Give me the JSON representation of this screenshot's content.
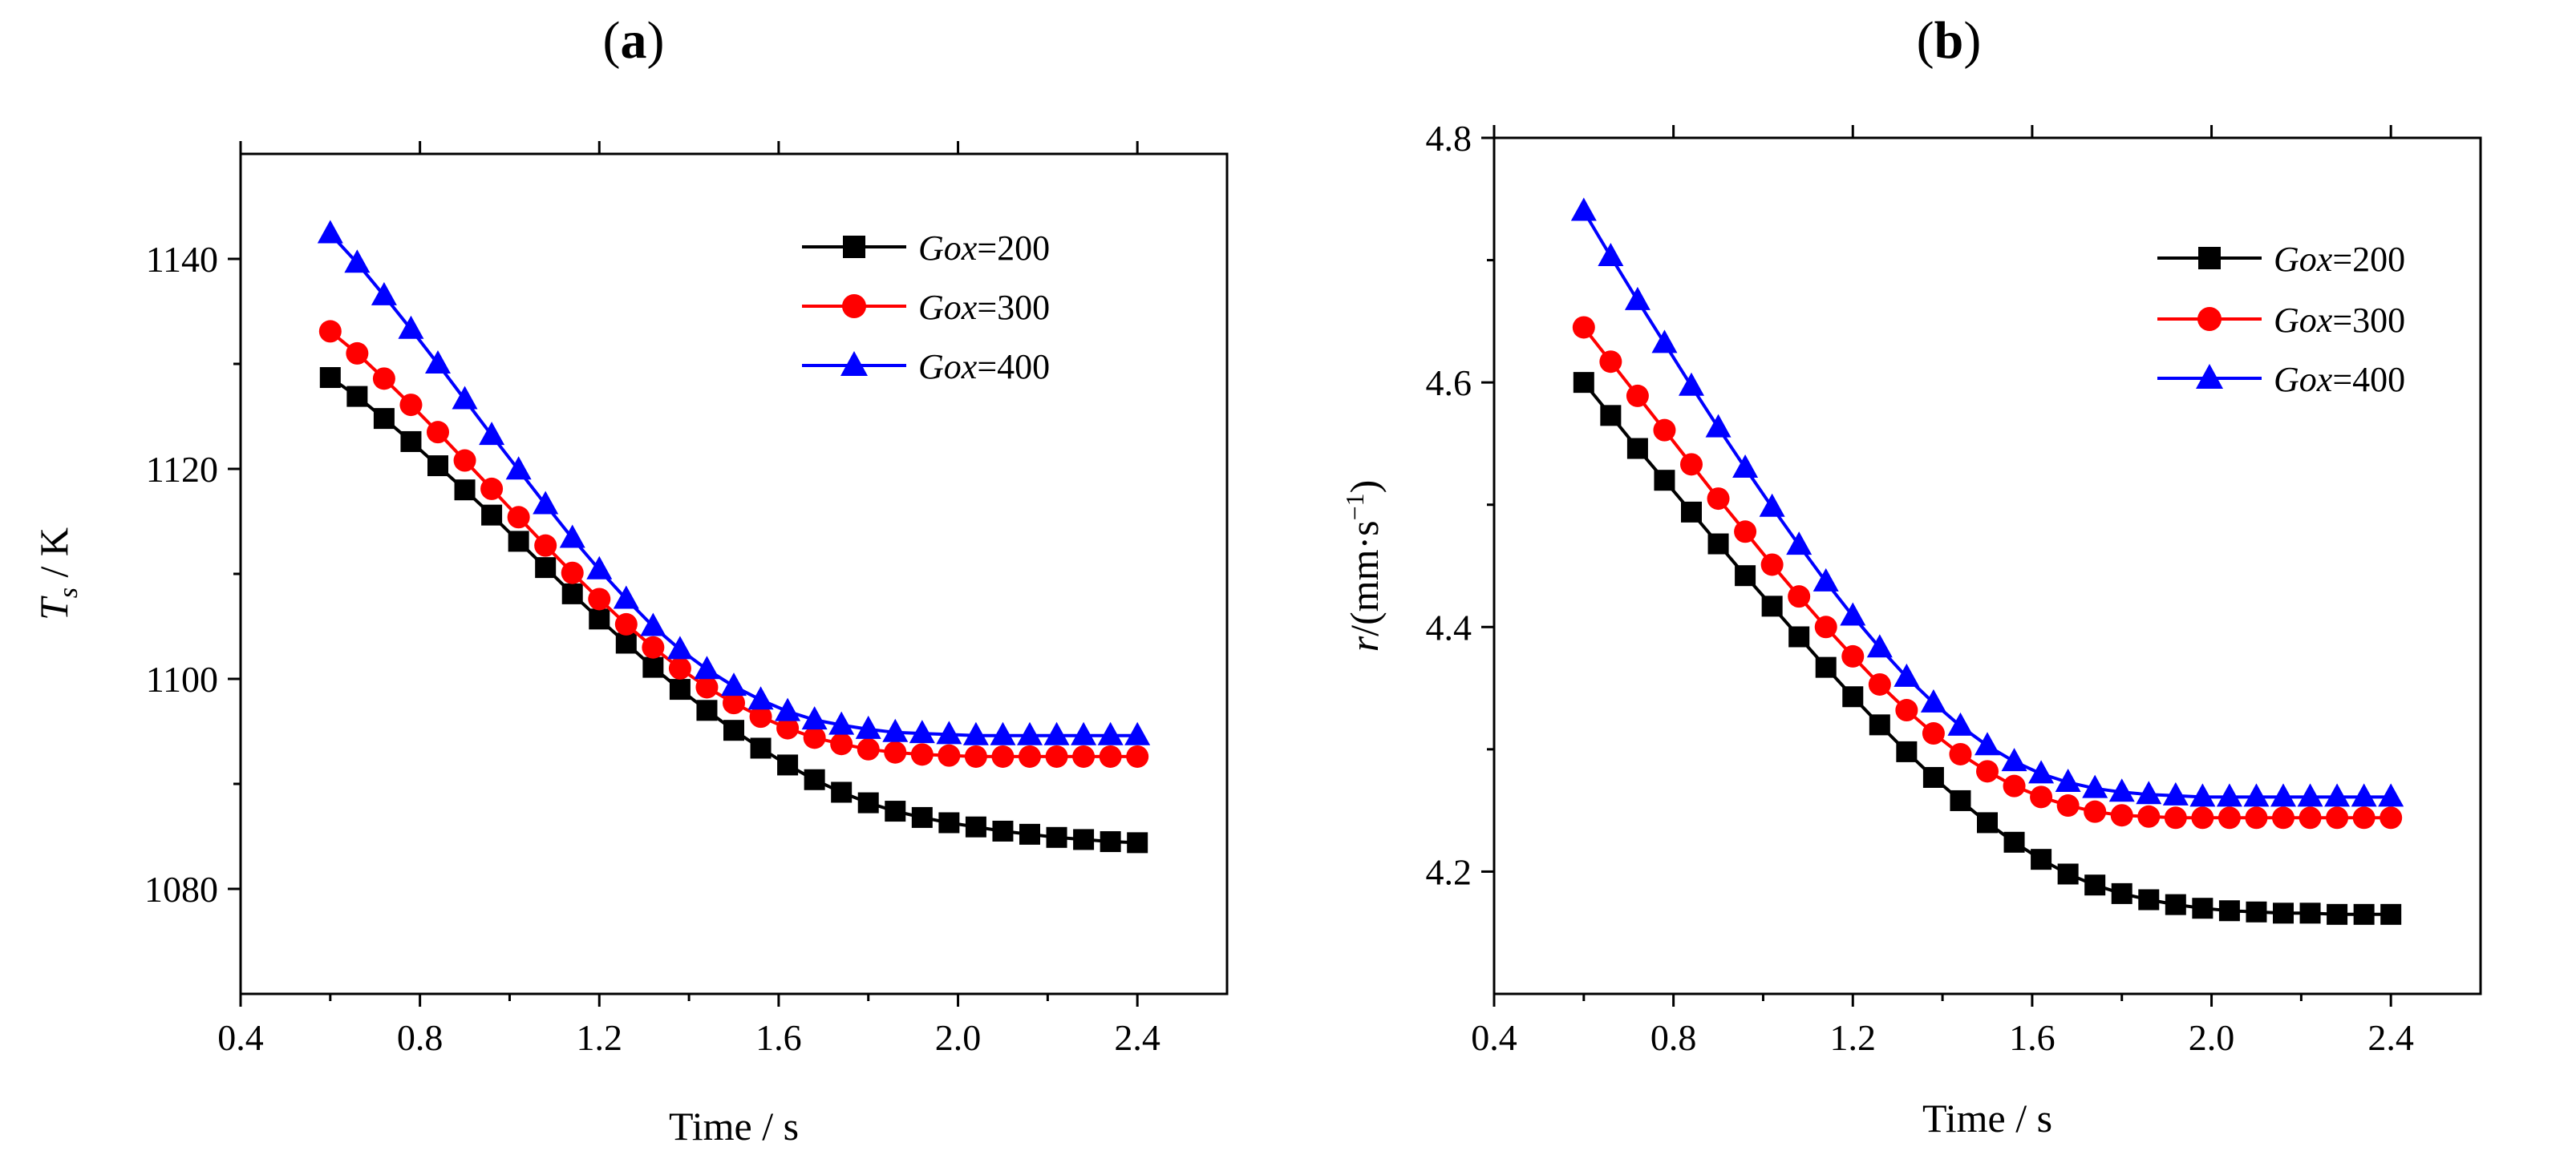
{
  "figure": {
    "panels": [
      {
        "label_open": "(",
        "label_letter": "a",
        "label_close": ")"
      },
      {
        "label_open": "(",
        "label_letter": "b",
        "label_close": ")"
      }
    ]
  },
  "chart_data": [
    {
      "type": "line",
      "panel": "(a)",
      "title": "",
      "xlabel": "Time / s",
      "ylabel_main": "T",
      "ylabel_sub": "s",
      "ylabel_rest": " / K",
      "xlim": [
        0.4,
        2.6
      ],
      "ylim": [
        1070,
        1150
      ],
      "xticks": [
        0.4,
        0.8,
        1.2,
        1.6,
        2.0,
        2.4
      ],
      "xtick_labels": [
        "0.4",
        "0.8",
        "1.2",
        "1.6",
        "2.0",
        "2.4"
      ],
      "yticks": [
        1080,
        1100,
        1120,
        1140
      ],
      "ytick_labels": [
        "1080",
        "1100",
        "1120",
        "1140"
      ],
      "legend_position": "top-right",
      "x": [
        0.6,
        0.66,
        0.72,
        0.78,
        0.84,
        0.9,
        0.96,
        1.02,
        1.08,
        1.14,
        1.2,
        1.26,
        1.32,
        1.38,
        1.44,
        1.5,
        1.56,
        1.62,
        1.68,
        1.74,
        1.8,
        1.86,
        1.92,
        1.98,
        2.04,
        2.1,
        2.16,
        2.22,
        2.28,
        2.34,
        2.4
      ],
      "series": [
        {
          "name_italic": "Gox",
          "name_rest": "=200",
          "color": "#000000",
          "marker": "square",
          "values": [
            1128.7,
            1126.9,
            1124.8,
            1122.6,
            1120.3,
            1118.0,
            1115.6,
            1113.1,
            1110.6,
            1108.1,
            1105.7,
            1103.4,
            1101.1,
            1099.0,
            1097.0,
            1095.1,
            1093.4,
            1091.8,
            1090.4,
            1089.2,
            1088.2,
            1087.4,
            1086.8,
            1086.3,
            1085.9,
            1085.5,
            1085.2,
            1084.9,
            1084.7,
            1084.5,
            1084.4
          ]
        },
        {
          "name_italic": "Gox",
          "name_rest": "=300",
          "color": "#ff0000",
          "marker": "circle",
          "values": [
            1133.1,
            1131.0,
            1128.6,
            1126.1,
            1123.5,
            1120.8,
            1118.1,
            1115.4,
            1112.7,
            1110.1,
            1107.6,
            1105.2,
            1103.0,
            1101.0,
            1099.2,
            1097.7,
            1096.4,
            1095.3,
            1094.4,
            1093.8,
            1093.3,
            1093.0,
            1092.8,
            1092.7,
            1092.6,
            1092.6,
            1092.6,
            1092.6,
            1092.6,
            1092.6,
            1092.6
          ]
        },
        {
          "name_italic": "Gox",
          "name_rest": "=400",
          "color": "#0000ff",
          "marker": "triangle",
          "values": [
            1142.4,
            1139.6,
            1136.5,
            1133.3,
            1130.0,
            1126.6,
            1123.2,
            1119.9,
            1116.6,
            1113.4,
            1110.4,
            1107.6,
            1105.0,
            1102.8,
            1100.9,
            1099.3,
            1098.0,
            1096.9,
            1096.1,
            1095.6,
            1095.2,
            1094.9,
            1094.8,
            1094.7,
            1094.6,
            1094.6,
            1094.6,
            1094.6,
            1094.6,
            1094.6,
            1094.6
          ]
        }
      ]
    },
    {
      "type": "line",
      "panel": "(b)",
      "title": "",
      "xlabel": "Time / s",
      "ylabel_main": "r",
      "ylabel_rest": "/(mm·s",
      "ylabel_sup": "−1",
      "ylabel_close": ")",
      "xlim": [
        0.4,
        2.6
      ],
      "ylim": [
        4.1,
        4.8
      ],
      "xticks": [
        0.4,
        0.8,
        1.2,
        1.6,
        2.0,
        2.4
      ],
      "xtick_labels": [
        "0.4",
        "0.8",
        "1.2",
        "1.6",
        "2.0",
        "2.4"
      ],
      "yticks": [
        4.2,
        4.4,
        4.6,
        4.8
      ],
      "ytick_labels": [
        "4.2",
        "4.4",
        "4.6",
        "4.8"
      ],
      "legend_position": "top-right",
      "x": [
        0.6,
        0.66,
        0.72,
        0.78,
        0.84,
        0.9,
        0.96,
        1.02,
        1.08,
        1.14,
        1.2,
        1.26,
        1.32,
        1.38,
        1.44,
        1.5,
        1.56,
        1.62,
        1.68,
        1.74,
        1.8,
        1.86,
        1.92,
        1.98,
        2.04,
        2.1,
        2.16,
        2.22,
        2.28,
        2.34,
        2.4
      ],
      "series": [
        {
          "name_italic": "Gox",
          "name_rest": "=200",
          "color": "#000000",
          "marker": "square",
          "values": [
            4.6,
            4.573,
            4.546,
            4.52,
            4.494,
            4.468,
            4.442,
            4.417,
            4.392,
            4.367,
            4.343,
            4.32,
            4.298,
            4.277,
            4.258,
            4.24,
            4.224,
            4.21,
            4.198,
            4.189,
            4.182,
            4.177,
            4.173,
            4.17,
            4.168,
            4.167,
            4.166,
            4.166,
            4.165,
            4.165,
            4.165
          ]
        },
        {
          "name_italic": "Gox",
          "name_rest": "=300",
          "color": "#ff0000",
          "marker": "circle",
          "values": [
            4.645,
            4.617,
            4.589,
            4.561,
            4.533,
            4.505,
            4.478,
            4.451,
            4.425,
            4.4,
            4.376,
            4.353,
            4.332,
            4.313,
            4.296,
            4.282,
            4.27,
            4.261,
            4.254,
            4.249,
            4.246,
            4.245,
            4.244,
            4.244,
            4.244,
            4.244,
            4.244,
            4.244,
            4.244,
            4.244,
            4.244
          ]
        },
        {
          "name_italic": "Gox",
          "name_rest": "=400",
          "color": "#0000ff",
          "marker": "triangle",
          "values": [
            4.74,
            4.703,
            4.667,
            4.632,
            4.597,
            4.563,
            4.53,
            4.498,
            4.467,
            4.437,
            4.409,
            4.383,
            4.359,
            4.338,
            4.319,
            4.303,
            4.29,
            4.28,
            4.273,
            4.268,
            4.265,
            4.263,
            4.262,
            4.261,
            4.261,
            4.261,
            4.261,
            4.261,
            4.261,
            4.261,
            4.261
          ]
        }
      ]
    }
  ]
}
